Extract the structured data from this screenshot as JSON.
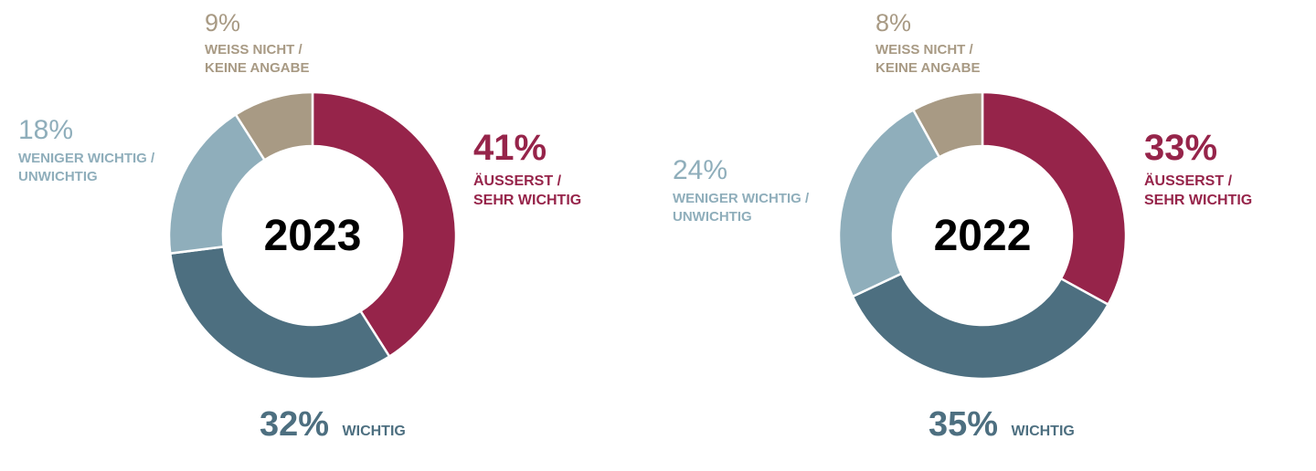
{
  "colors": {
    "aeusserst": "#96244a",
    "wichtig": "#4d6f80",
    "weniger": "#8faebb",
    "weiss": "#a89a84",
    "year_text": "#000000"
  },
  "chart_data": [
    {
      "type": "pie",
      "center_label": "2023",
      "slices": [
        {
          "key": "aeusserst",
          "percent": "41%",
          "value": 41,
          "label_lines": [
            "ÄUSSERST /",
            "SEHR WICHTIG"
          ]
        },
        {
          "key": "wichtig",
          "percent": "32%",
          "value": 32,
          "label_lines": [
            "WICHTIG"
          ]
        },
        {
          "key": "weniger",
          "percent": "18%",
          "value": 18,
          "label_lines": [
            "WENIGER WICHTIG /",
            "UNWICHTIG"
          ]
        },
        {
          "key": "weiss",
          "percent": "9%",
          "value": 9,
          "label_lines": [
            "WEISS NICHT /",
            "KEINE ANGABE"
          ]
        }
      ]
    },
    {
      "type": "pie",
      "center_label": "2022",
      "slices": [
        {
          "key": "aeusserst",
          "percent": "33%",
          "value": 33,
          "label_lines": [
            "ÄUSSERST /",
            "SEHR WICHTIG"
          ]
        },
        {
          "key": "wichtig",
          "percent": "35%",
          "value": 35,
          "label_lines": [
            "WICHTIG"
          ]
        },
        {
          "key": "weniger",
          "percent": "24%",
          "value": 24,
          "label_lines": [
            "WENIGER WICHTIG /",
            "UNWICHTIG"
          ]
        },
        {
          "key": "weiss",
          "percent": "8%",
          "value": 8,
          "label_lines": [
            "WEISS NICHT /",
            "KEINE ANGABE"
          ]
        }
      ]
    }
  ]
}
